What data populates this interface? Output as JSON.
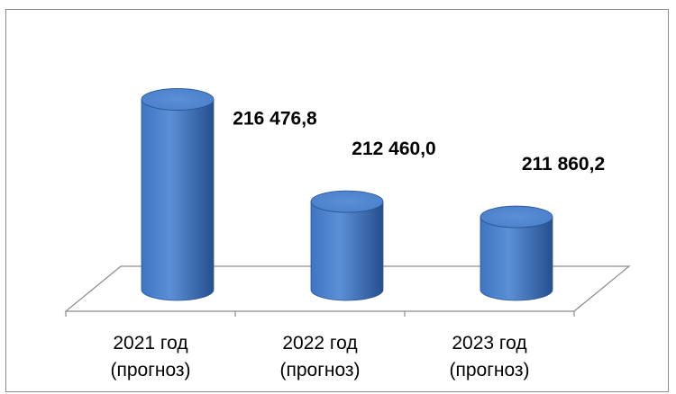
{
  "chart_data": {
    "type": "bar",
    "style": "3d-cylinder",
    "categories": [
      [
        "2021 год",
        "(прогноз)"
      ],
      [
        "2022 год",
        "(прогноз)"
      ],
      [
        "2023 год",
        "(прогноз)"
      ]
    ],
    "values": [
      216476.8,
      212460.0,
      211860.2
    ],
    "data_labels": [
      "216 476,8",
      "212 460,0",
      "211 860,2"
    ],
    "ylim": [
      209000,
      217200
    ],
    "grid": false,
    "legend": "none",
    "colors": {
      "bar_light": "#5b8fd6",
      "bar_mid": "#3f74c2",
      "bar_dark": "#254f8e",
      "bar_top": "#4a7fcb",
      "floor_line": "#8c8c8c"
    }
  }
}
